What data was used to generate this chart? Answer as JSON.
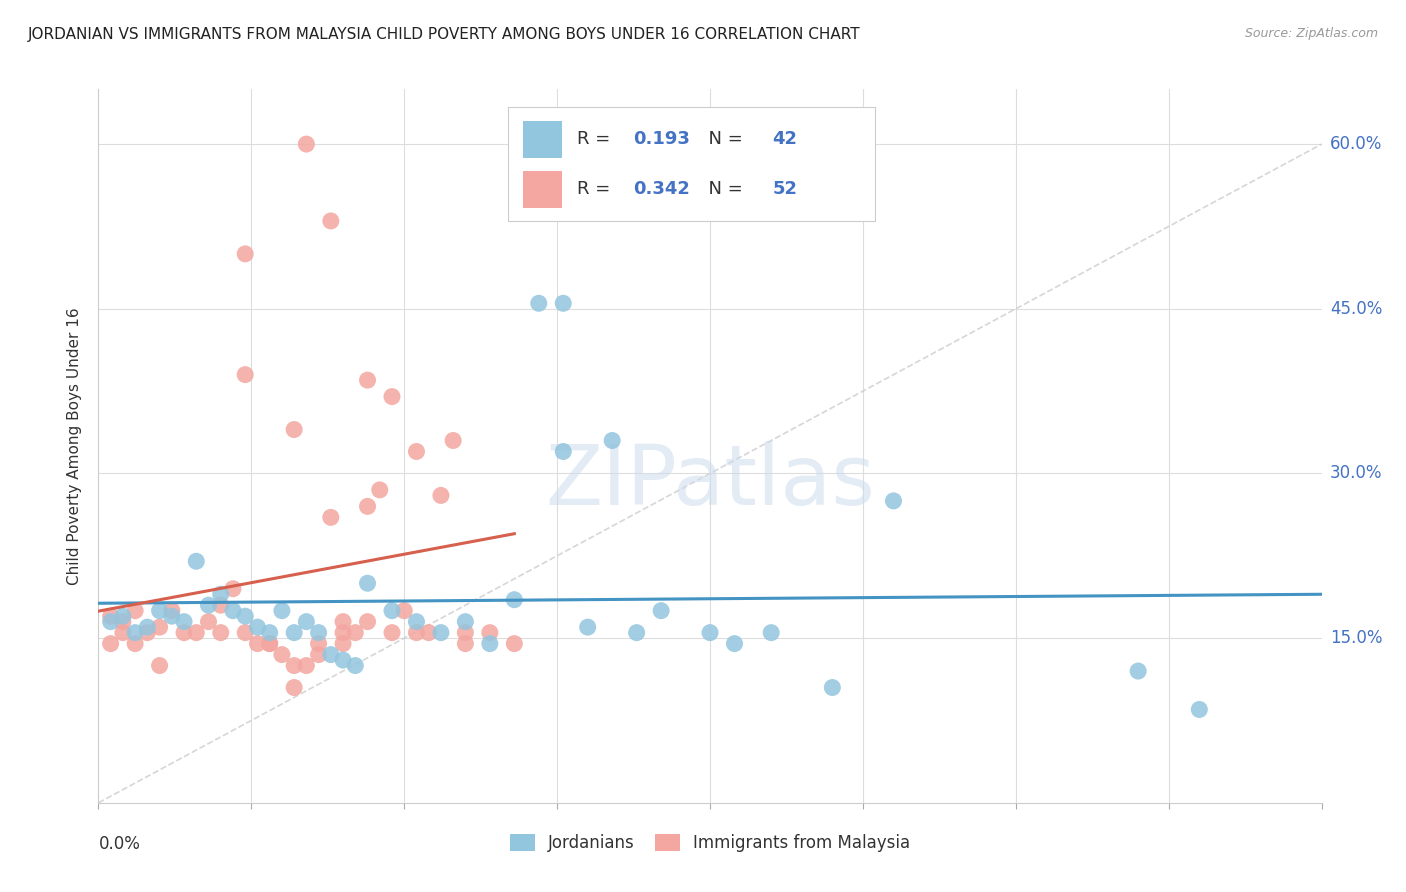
{
  "title": "JORDANIAN VS IMMIGRANTS FROM MALAYSIA CHILD POVERTY AMONG BOYS UNDER 16 CORRELATION CHART",
  "source": "Source: ZipAtlas.com",
  "ylabel": "Child Poverty Among Boys Under 16",
  "ytick_labels": [
    "15.0%",
    "30.0%",
    "45.0%",
    "60.0%"
  ],
  "ytick_values": [
    0.15,
    0.3,
    0.45,
    0.6
  ],
  "xlim": [
    0.0,
    0.1
  ],
  "ylim": [
    0.0,
    0.65
  ],
  "blue_R": 0.193,
  "blue_N": 42,
  "pink_R": 0.342,
  "pink_N": 52,
  "blue_color": "#92c5de",
  "pink_color": "#f4a6a0",
  "blue_line_color": "#4393c3",
  "pink_line_color": "#d6604d",
  "diagonal_color": "#cccccc",
  "legend_label_blue": "Jordanians",
  "legend_label_pink": "Immigrants from Malaysia",
  "watermark": "ZIPatlas",
  "blue_scatter_x": [
    0.001,
    0.002,
    0.003,
    0.004,
    0.005,
    0.006,
    0.007,
    0.008,
    0.009,
    0.01,
    0.011,
    0.012,
    0.013,
    0.014,
    0.015,
    0.016,
    0.017,
    0.018,
    0.019,
    0.02,
    0.021,
    0.022,
    0.024,
    0.026,
    0.028,
    0.03,
    0.032,
    0.034,
    0.036,
    0.038,
    0.04,
    0.042,
    0.046,
    0.05,
    0.055,
    0.06,
    0.038,
    0.044,
    0.052,
    0.065,
    0.085,
    0.09
  ],
  "blue_scatter_y": [
    0.165,
    0.17,
    0.155,
    0.16,
    0.175,
    0.17,
    0.165,
    0.22,
    0.18,
    0.19,
    0.175,
    0.17,
    0.16,
    0.155,
    0.175,
    0.155,
    0.165,
    0.155,
    0.135,
    0.13,
    0.125,
    0.2,
    0.175,
    0.165,
    0.155,
    0.165,
    0.145,
    0.185,
    0.455,
    0.455,
    0.16,
    0.33,
    0.175,
    0.155,
    0.155,
    0.105,
    0.32,
    0.155,
    0.145,
    0.275,
    0.12,
    0.085
  ],
  "pink_scatter_x": [
    0.001,
    0.001,
    0.002,
    0.002,
    0.003,
    0.003,
    0.004,
    0.005,
    0.005,
    0.006,
    0.007,
    0.008,
    0.009,
    0.01,
    0.01,
    0.011,
    0.012,
    0.012,
    0.013,
    0.014,
    0.015,
    0.016,
    0.016,
    0.017,
    0.018,
    0.019,
    0.02,
    0.02,
    0.021,
    0.022,
    0.022,
    0.023,
    0.024,
    0.025,
    0.026,
    0.027,
    0.028,
    0.029,
    0.03,
    0.03,
    0.032,
    0.034,
    0.016,
    0.018,
    0.02,
    0.022,
    0.024,
    0.026,
    0.012,
    0.014,
    0.017,
    0.019
  ],
  "pink_scatter_y": [
    0.145,
    0.17,
    0.165,
    0.155,
    0.175,
    0.145,
    0.155,
    0.16,
    0.125,
    0.175,
    0.155,
    0.155,
    0.165,
    0.18,
    0.155,
    0.195,
    0.155,
    0.5,
    0.145,
    0.145,
    0.135,
    0.125,
    0.34,
    0.125,
    0.135,
    0.26,
    0.155,
    0.145,
    0.155,
    0.27,
    0.165,
    0.285,
    0.155,
    0.175,
    0.155,
    0.155,
    0.28,
    0.33,
    0.155,
    0.145,
    0.155,
    0.145,
    0.105,
    0.145,
    0.165,
    0.385,
    0.37,
    0.32,
    0.39,
    0.145,
    0.6,
    0.53
  ]
}
